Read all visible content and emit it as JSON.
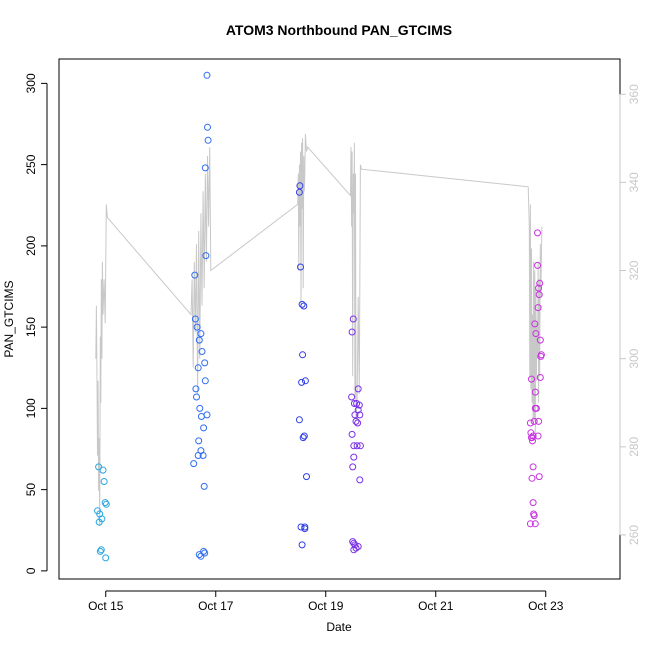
{
  "chart_data": {
    "type": "scatter",
    "title": "ATOM3 Northbound PAN_GTCIMS",
    "xlabel": "Date",
    "ylabel": "PAN_GTCIMS",
    "x_unit": "days since Oct 14 00:00",
    "xlim": [
      14.0,
      24.2
    ],
    "ylim": [
      -5,
      315
    ],
    "y_ticks": [
      0,
      50,
      100,
      150,
      200,
      250,
      300
    ],
    "x_ticks": [
      {
        "value": 14.85,
        "label": "Oct 15"
      },
      {
        "value": 16.85,
        "label": "Oct 17"
      },
      {
        "value": 18.85,
        "label": "Oct 19"
      },
      {
        "value": 20.85,
        "label": "Oct 21"
      },
      {
        "value": 22.85,
        "label": "Oct 23"
      }
    ],
    "y2lim": [
      250,
      368
    ],
    "y2_ticks": [
      260,
      280,
      300,
      320,
      340,
      360
    ],
    "points": [
      {
        "x": 14.72,
        "y": 64,
        "color": "#29a6e0"
      },
      {
        "x": 14.7,
        "y": 37,
        "color": "#29a6e0"
      },
      {
        "x": 14.74,
        "y": 35,
        "color": "#29a6e0"
      },
      {
        "x": 14.73,
        "y": 30,
        "color": "#29a6e0"
      },
      {
        "x": 14.78,
        "y": 32,
        "color": "#29a6e0"
      },
      {
        "x": 14.8,
        "y": 62,
        "color": "#29a6e0"
      },
      {
        "x": 14.82,
        "y": 55,
        "color": "#29a6e0"
      },
      {
        "x": 14.84,
        "y": 42,
        "color": "#29a6e0"
      },
      {
        "x": 14.86,
        "y": 41,
        "color": "#29a6e0"
      },
      {
        "x": 14.75,
        "y": 12,
        "color": "#29a6e0"
      },
      {
        "x": 14.77,
        "y": 13,
        "color": "#29a6e0"
      },
      {
        "x": 14.85,
        "y": 8,
        "color": "#29a6e0"
      },
      {
        "x": 16.47,
        "y": 182,
        "color": "#2f6df2"
      },
      {
        "x": 16.48,
        "y": 155,
        "color": "#2f6df2"
      },
      {
        "x": 16.51,
        "y": 150,
        "color": "#2f6df2"
      },
      {
        "x": 16.55,
        "y": 142,
        "color": "#2f6df2"
      },
      {
        "x": 16.58,
        "y": 146,
        "color": "#2f6df2"
      },
      {
        "x": 16.6,
        "y": 135,
        "color": "#2f6df2"
      },
      {
        "x": 16.53,
        "y": 125,
        "color": "#2f6df2"
      },
      {
        "x": 16.49,
        "y": 112,
        "color": "#2f6df2"
      },
      {
        "x": 16.5,
        "y": 107,
        "color": "#2f6df2"
      },
      {
        "x": 16.56,
        "y": 100,
        "color": "#2f6df2"
      },
      {
        "x": 16.59,
        "y": 95,
        "color": "#2f6df2"
      },
      {
        "x": 16.63,
        "y": 88,
        "color": "#2f6df2"
      },
      {
        "x": 16.54,
        "y": 80,
        "color": "#2f6df2"
      },
      {
        "x": 16.58,
        "y": 74,
        "color": "#2f6df2"
      },
      {
        "x": 16.53,
        "y": 71,
        "color": "#2f6df2"
      },
      {
        "x": 16.62,
        "y": 71,
        "color": "#2f6df2"
      },
      {
        "x": 16.45,
        "y": 66,
        "color": "#2f6df2"
      },
      {
        "x": 16.65,
        "y": 128,
        "color": "#2f6df2"
      },
      {
        "x": 16.66,
        "y": 117,
        "color": "#2f6df2"
      },
      {
        "x": 16.69,
        "y": 96,
        "color": "#2f6df2"
      },
      {
        "x": 16.64,
        "y": 52,
        "color": "#2f6df2"
      },
      {
        "x": 16.55,
        "y": 10,
        "color": "#2f6df2"
      },
      {
        "x": 16.58,
        "y": 9,
        "color": "#2f6df2"
      },
      {
        "x": 16.63,
        "y": 12,
        "color": "#2f6df2"
      },
      {
        "x": 16.65,
        "y": 11,
        "color": "#2f6df2"
      },
      {
        "x": 16.66,
        "y": 248,
        "color": "#2f6df2"
      },
      {
        "x": 16.67,
        "y": 194,
        "color": "#2f6df2"
      },
      {
        "x": 16.69,
        "y": 305,
        "color": "#2f6df2"
      },
      {
        "x": 16.7,
        "y": 273,
        "color": "#2f6df2"
      },
      {
        "x": 16.71,
        "y": 265,
        "color": "#2f6df2"
      },
      {
        "x": 18.38,
        "y": 237,
        "color": "#2f3fe6"
      },
      {
        "x": 18.37,
        "y": 233,
        "color": "#2f3fe6"
      },
      {
        "x": 18.39,
        "y": 187,
        "color": "#2f3fe6"
      },
      {
        "x": 18.42,
        "y": 164,
        "color": "#2f3fe6"
      },
      {
        "x": 18.45,
        "y": 163,
        "color": "#2f3fe6"
      },
      {
        "x": 18.43,
        "y": 133,
        "color": "#2f3fe6"
      },
      {
        "x": 18.41,
        "y": 116,
        "color": "#2f3fe6"
      },
      {
        "x": 18.48,
        "y": 117,
        "color": "#2f3fe6"
      },
      {
        "x": 18.37,
        "y": 93,
        "color": "#2f3fe6"
      },
      {
        "x": 18.44,
        "y": 82,
        "color": "#2f3fe6"
      },
      {
        "x": 18.46,
        "y": 83,
        "color": "#2f3fe6"
      },
      {
        "x": 18.5,
        "y": 58,
        "color": "#2f3fe6"
      },
      {
        "x": 18.4,
        "y": 27,
        "color": "#2f3fe6"
      },
      {
        "x": 18.47,
        "y": 27,
        "color": "#2f3fe6"
      },
      {
        "x": 18.47,
        "y": 26,
        "color": "#2f3fe6"
      },
      {
        "x": 18.42,
        "y": 16,
        "color": "#2f3fe6"
      },
      {
        "x": 19.35,
        "y": 155,
        "color": "#7a30e8"
      },
      {
        "x": 19.33,
        "y": 147,
        "color": "#7a30e8"
      },
      {
        "x": 19.32,
        "y": 107,
        "color": "#7a30e8"
      },
      {
        "x": 19.37,
        "y": 103,
        "color": "#7a30e8"
      },
      {
        "x": 19.41,
        "y": 103,
        "color": "#7a30e8"
      },
      {
        "x": 19.46,
        "y": 102,
        "color": "#7a30e8"
      },
      {
        "x": 19.44,
        "y": 99,
        "color": "#7a30e8"
      },
      {
        "x": 19.38,
        "y": 96,
        "color": "#7a30e8"
      },
      {
        "x": 19.47,
        "y": 96,
        "color": "#7a30e8"
      },
      {
        "x": 19.4,
        "y": 92,
        "color": "#7a30e8"
      },
      {
        "x": 19.43,
        "y": 91,
        "color": "#7a30e8"
      },
      {
        "x": 19.33,
        "y": 84,
        "color": "#7a30e8"
      },
      {
        "x": 19.36,
        "y": 77,
        "color": "#7a30e8"
      },
      {
        "x": 19.42,
        "y": 77,
        "color": "#7a30e8"
      },
      {
        "x": 19.48,
        "y": 77,
        "color": "#7a30e8"
      },
      {
        "x": 19.36,
        "y": 70,
        "color": "#7a30e8"
      },
      {
        "x": 19.34,
        "y": 64,
        "color": "#7a30e8"
      },
      {
        "x": 19.47,
        "y": 56,
        "color": "#7a30e8"
      },
      {
        "x": 19.44,
        "y": 112,
        "color": "#7a30e8"
      },
      {
        "x": 19.34,
        "y": 18,
        "color": "#7a30e8"
      },
      {
        "x": 19.36,
        "y": 17,
        "color": "#7a30e8"
      },
      {
        "x": 19.38,
        "y": 16,
        "color": "#7a30e8"
      },
      {
        "x": 19.4,
        "y": 14,
        "color": "#7a30e8"
      },
      {
        "x": 19.44,
        "y": 15,
        "color": "#7a30e8"
      },
      {
        "x": 19.36,
        "y": 13,
        "color": "#7a30e8"
      },
      {
        "x": 22.57,
        "y": 91,
        "color": "#c832e0"
      },
      {
        "x": 22.58,
        "y": 85,
        "color": "#c832e0"
      },
      {
        "x": 22.59,
        "y": 82,
        "color": "#c832e0"
      },
      {
        "x": 22.6,
        "y": 82,
        "color": "#c832e0"
      },
      {
        "x": 22.62,
        "y": 83,
        "color": "#c832e0"
      },
      {
        "x": 22.61,
        "y": 80,
        "color": "#c832e0"
      },
      {
        "x": 22.59,
        "y": 118,
        "color": "#c832e0"
      },
      {
        "x": 22.64,
        "y": 92,
        "color": "#c832e0"
      },
      {
        "x": 22.66,
        "y": 100,
        "color": "#c832e0"
      },
      {
        "x": 22.68,
        "y": 100,
        "color": "#c832e0"
      },
      {
        "x": 22.66,
        "y": 110,
        "color": "#c832e0"
      },
      {
        "x": 22.67,
        "y": 146,
        "color": "#c832e0"
      },
      {
        "x": 22.65,
        "y": 152,
        "color": "#c832e0"
      },
      {
        "x": 22.71,
        "y": 162,
        "color": "#c832e0"
      },
      {
        "x": 22.72,
        "y": 174,
        "color": "#c832e0"
      },
      {
        "x": 22.74,
        "y": 177,
        "color": "#c832e0"
      },
      {
        "x": 22.73,
        "y": 170,
        "color": "#c832e0"
      },
      {
        "x": 22.7,
        "y": 188,
        "color": "#c832e0"
      },
      {
        "x": 22.7,
        "y": 208,
        "color": "#c832e0"
      },
      {
        "x": 22.75,
        "y": 142,
        "color": "#c832e0"
      },
      {
        "x": 22.77,
        "y": 133,
        "color": "#c832e0"
      },
      {
        "x": 22.76,
        "y": 132,
        "color": "#c832e0"
      },
      {
        "x": 22.75,
        "y": 119,
        "color": "#c832e0"
      },
      {
        "x": 22.72,
        "y": 92,
        "color": "#c832e0"
      },
      {
        "x": 22.71,
        "y": 83,
        "color": "#c832e0"
      },
      {
        "x": 22.62,
        "y": 64,
        "color": "#c832e0"
      },
      {
        "x": 22.6,
        "y": 57,
        "color": "#c832e0"
      },
      {
        "x": 22.73,
        "y": 58,
        "color": "#c832e0"
      },
      {
        "x": 22.62,
        "y": 42,
        "color": "#c832e0"
      },
      {
        "x": 22.63,
        "y": 35,
        "color": "#c832e0"
      },
      {
        "x": 22.64,
        "y": 34,
        "color": "#c832e0"
      },
      {
        "x": 22.57,
        "y": 29,
        "color": "#c832e0"
      },
      {
        "x": 22.66,
        "y": 29,
        "color": "#c832e0"
      }
    ],
    "line_series": {
      "name": "secondary",
      "color": "#c8c8c8",
      "x": [
        14.67,
        14.68,
        14.69,
        14.7,
        14.71,
        14.72,
        14.73,
        14.74,
        14.75,
        14.76,
        14.77,
        14.78,
        14.79,
        14.8,
        14.82,
        14.84,
        14.86,
        14.88,
        16.4,
        16.42,
        16.44,
        16.46,
        16.48,
        16.5,
        16.52,
        16.54,
        16.56,
        16.58,
        16.6,
        16.62,
        16.64,
        16.66,
        16.68,
        16.7,
        16.72,
        16.74,
        16.76,
        18.34,
        18.35,
        18.36,
        18.37,
        18.38,
        18.39,
        18.4,
        18.41,
        18.42,
        18.43,
        18.44,
        18.45,
        18.46,
        18.47,
        18.48,
        18.5,
        18.52,
        19.3,
        19.31,
        19.32,
        19.33,
        19.34,
        19.35,
        19.36,
        19.37,
        19.38,
        19.39,
        19.4,
        19.42,
        19.44,
        19.46,
        19.48,
        19.5,
        22.53,
        22.55,
        22.56,
        22.57,
        22.58,
        22.59,
        22.6,
        22.61,
        22.62,
        22.63,
        22.64,
        22.65,
        22.66,
        22.67,
        22.68,
        22.69,
        22.7,
        22.71,
        22.72,
        22.73,
        22.74,
        22.75,
        22.76,
        22.78
      ],
      "y": [
        300,
        312,
        298,
        278,
        295,
        270,
        282,
        262,
        305,
        290,
        318,
        300,
        322,
        310,
        318,
        308,
        335,
        332,
        310,
        318,
        298,
        322,
        306,
        326,
        292,
        329,
        300,
        333,
        312,
        338,
        316,
        342,
        322,
        346,
        330,
        348,
        320,
        335,
        342,
        320,
        344,
        330,
        347,
        312,
        349,
        334,
        350,
        316,
        346,
        338,
        342,
        351,
        347,
        348,
        337,
        348,
        330,
        347,
        296,
        342,
        333,
        349,
        291,
        342,
        286,
        290,
        314,
        292,
        344,
        343,
        339,
        330,
        296,
        335,
        293,
        325,
        290,
        310,
        285,
        322,
        286,
        320,
        282,
        316,
        295,
        308,
        300,
        322,
        290,
        318,
        296,
        326,
        314,
        330
      ]
    }
  }
}
